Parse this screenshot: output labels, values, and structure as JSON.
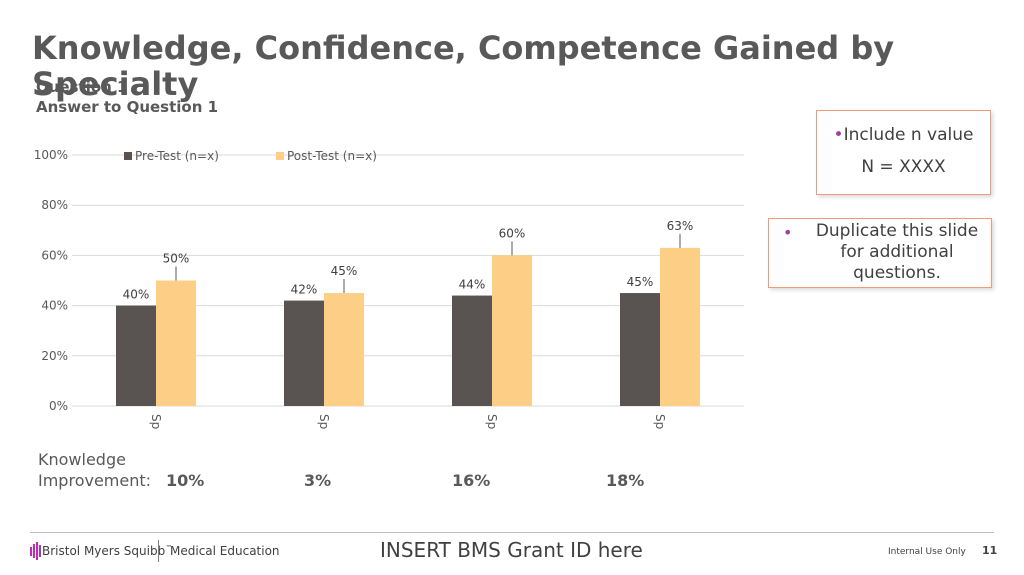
{
  "slide": {
    "title": "Knowledge, Confidence, Competence Gained by Specialty",
    "subtitle_back": "Question 1",
    "subtitle": "Answer to Question 1"
  },
  "notes": {
    "box1_line1": "Include n value",
    "box1_line2": "N = XXXX",
    "box1_bullet": "•",
    "box2_bullet": "•",
    "box2_text": "Duplicate this slide for additional questions."
  },
  "knowledge": {
    "label_line1": "Knowledge",
    "label_line2": "Improvement:",
    "values": [
      "10%",
      "3%",
      "16%",
      "18%"
    ]
  },
  "footer": {
    "brand": "Bristol Myers Squibb",
    "trademark": "™",
    "section": "Medical Education",
    "grant_id": "INSERT BMS Grant ID here",
    "classification": "Internal Use Only",
    "page_number": "11"
  },
  "colors": {
    "pre": "#595352",
    "post": "#fdcf86",
    "grid": "#d9d9d9",
    "box_border": "#f29a7a",
    "bullet": "#a13ea1"
  },
  "chart_data": {
    "type": "bar",
    "categories": [
      "Sp",
      "Sp",
      "Sp",
      "Sp"
    ],
    "series": [
      {
        "name": "Pre-Test (n=x)",
        "values": [
          40,
          42,
          44,
          45
        ],
        "labels": [
          "40%",
          "42%",
          "44%",
          "45%"
        ]
      },
      {
        "name": "Post-Test (n=x)",
        "values": [
          50,
          45,
          60,
          63
        ],
        "labels": [
          "50%",
          "45%",
          "60%",
          "63%"
        ]
      }
    ],
    "y_ticks": [
      "0%",
      "20%",
      "40%",
      "60%",
      "80%",
      "100%"
    ],
    "ylim": [
      0,
      100
    ],
    "grid": true,
    "legend": "top-left"
  }
}
